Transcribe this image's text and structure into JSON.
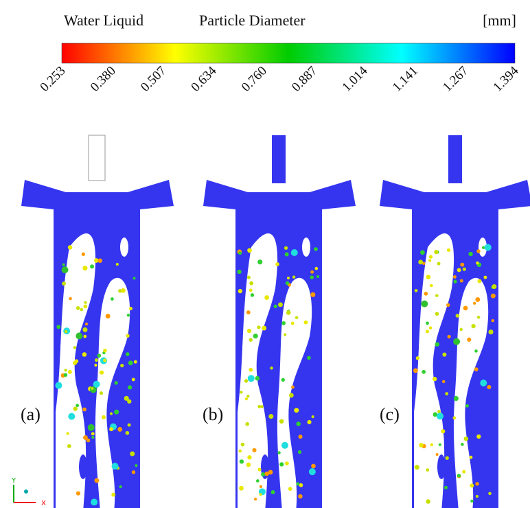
{
  "header": {
    "field": "Water Liquid",
    "quantity": "Particle Diameter",
    "unit": "[mm]"
  },
  "colorbar": {
    "ticks": [
      "0.253",
      "0.380",
      "0.507",
      "0.634",
      "0.760",
      "0.887",
      "1.014",
      "1.141",
      "1.267",
      "1.394"
    ]
  },
  "panels": [
    {
      "label": "(a)"
    },
    {
      "label": "(b)"
    },
    {
      "label": "(c)"
    }
  ],
  "axes": {
    "x": "X",
    "y": "Y"
  }
}
